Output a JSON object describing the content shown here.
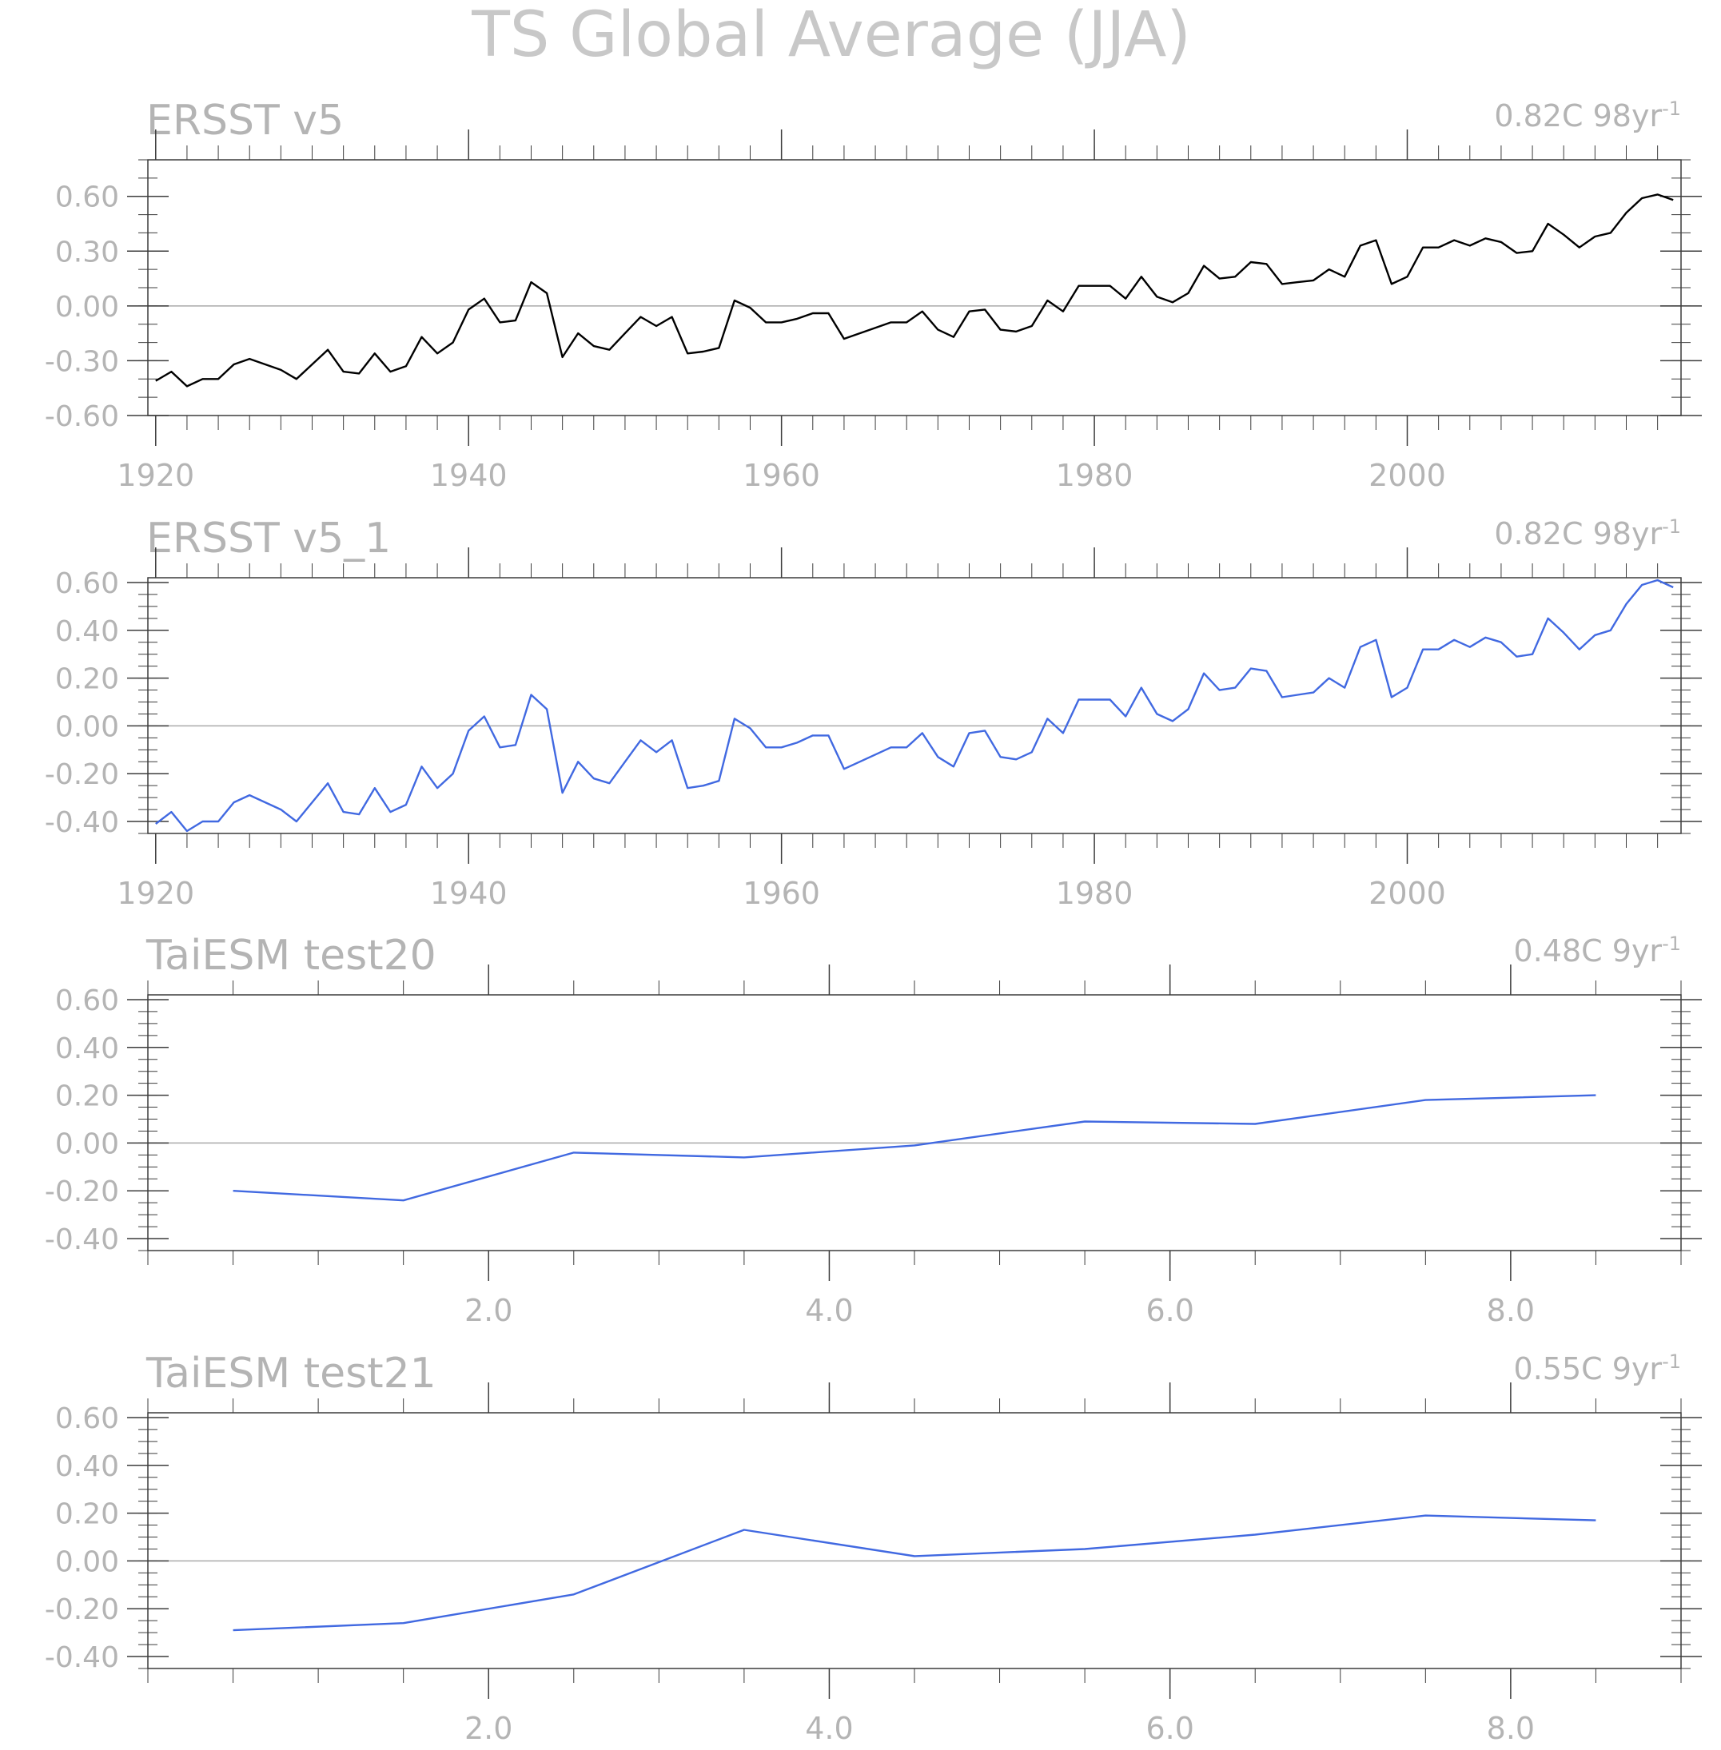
{
  "figure": {
    "title": "TS Global Average (JJA)"
  },
  "chart_data": [
    {
      "type": "line",
      "title": "ERSST v5",
      "trend_value": "0.82C 98yr",
      "trend_exp": "-1",
      "line_color": "#000000",
      "xlim": [
        1919.5,
        2017.5
      ],
      "ylim": [
        -0.6,
        0.8
      ],
      "yticks": [
        -0.6,
        -0.3,
        0.0,
        0.3,
        0.6
      ],
      "ytick_labels": [
        "-0.60",
        "-0.30",
        "0.00",
        "0.30",
        "0.60"
      ],
      "xticks": [
        1920,
        1940,
        1960,
        1980,
        2000
      ],
      "xtick_labels": [
        "1920",
        "1940",
        "1960",
        "1980",
        "2000"
      ],
      "x_minor_step": 2,
      "y_minor_step": 0.1,
      "zero_line": true,
      "x_start": 1920,
      "values": [
        -0.41,
        -0.36,
        -0.44,
        -0.4,
        -0.4,
        -0.32,
        -0.29,
        -0.32,
        -0.35,
        -0.4,
        -0.32,
        -0.24,
        -0.36,
        -0.37,
        -0.26,
        -0.36,
        -0.33,
        -0.17,
        -0.26,
        -0.2,
        -0.02,
        0.04,
        -0.09,
        -0.08,
        0.13,
        0.07,
        -0.28,
        -0.15,
        -0.22,
        -0.24,
        -0.15,
        -0.06,
        -0.11,
        -0.06,
        -0.26,
        -0.25,
        -0.23,
        0.03,
        -0.01,
        -0.09,
        -0.09,
        -0.07,
        -0.04,
        -0.04,
        -0.18,
        -0.15,
        -0.12,
        -0.09,
        -0.09,
        -0.03,
        -0.13,
        -0.17,
        -0.03,
        -0.02,
        -0.13,
        -0.14,
        -0.11,
        0.03,
        -0.03,
        0.11,
        0.11,
        0.11,
        0.04,
        0.16,
        0.05,
        0.02,
        0.07,
        0.22,
        0.15,
        0.16,
        0.24,
        0.23,
        0.12,
        0.13,
        0.14,
        0.2,
        0.16,
        0.33,
        0.36,
        0.12,
        0.16,
        0.32,
        0.32,
        0.36,
        0.33,
        0.37,
        0.35,
        0.29,
        0.3,
        0.45,
        0.39,
        0.32,
        0.38,
        0.4,
        0.51,
        0.59,
        0.61,
        0.58
      ]
    },
    {
      "type": "line",
      "title": "ERSST v5_1",
      "trend_value": "0.82C 98yr",
      "trend_exp": "-1",
      "line_color": "#4169e1",
      "xlim": [
        1919.5,
        2017.5
      ],
      "ylim": [
        -0.45,
        0.62
      ],
      "yticks": [
        -0.4,
        -0.2,
        0.0,
        0.2,
        0.4,
        0.6
      ],
      "ytick_labels": [
        "-0.40",
        "-0.20",
        "0.00",
        "0.20",
        "0.40",
        "0.60"
      ],
      "xticks": [
        1920,
        1940,
        1960,
        1980,
        2000
      ],
      "xtick_labels": [
        "1920",
        "1940",
        "1960",
        "1980",
        "2000"
      ],
      "x_minor_step": 2,
      "y_minor_step": 0.05,
      "zero_line": true,
      "x_start": 1920,
      "values": [
        -0.41,
        -0.36,
        -0.44,
        -0.4,
        -0.4,
        -0.32,
        -0.29,
        -0.32,
        -0.35,
        -0.4,
        -0.32,
        -0.24,
        -0.36,
        -0.37,
        -0.26,
        -0.36,
        -0.33,
        -0.17,
        -0.26,
        -0.2,
        -0.02,
        0.04,
        -0.09,
        -0.08,
        0.13,
        0.07,
        -0.28,
        -0.15,
        -0.22,
        -0.24,
        -0.15,
        -0.06,
        -0.11,
        -0.06,
        -0.26,
        -0.25,
        -0.23,
        0.03,
        -0.01,
        -0.09,
        -0.09,
        -0.07,
        -0.04,
        -0.04,
        -0.18,
        -0.15,
        -0.12,
        -0.09,
        -0.09,
        -0.03,
        -0.13,
        -0.17,
        -0.03,
        -0.02,
        -0.13,
        -0.14,
        -0.11,
        0.03,
        -0.03,
        0.11,
        0.11,
        0.11,
        0.04,
        0.16,
        0.05,
        0.02,
        0.07,
        0.22,
        0.15,
        0.16,
        0.24,
        0.23,
        0.12,
        0.13,
        0.14,
        0.2,
        0.16,
        0.33,
        0.36,
        0.12,
        0.16,
        0.32,
        0.32,
        0.36,
        0.33,
        0.37,
        0.35,
        0.29,
        0.3,
        0.45,
        0.39,
        0.32,
        0.38,
        0.4,
        0.51,
        0.59,
        0.61,
        0.58
      ]
    },
    {
      "type": "line",
      "title": "TaiESM test20",
      "trend_value": "0.48C 9yr",
      "trend_exp": "-1",
      "line_color": "#4169e1",
      "xlim": [
        0.0,
        9.0
      ],
      "ylim": [
        -0.45,
        0.62
      ],
      "yticks": [
        -0.4,
        -0.2,
        0.0,
        0.2,
        0.4,
        0.6
      ],
      "ytick_labels": [
        "-0.40",
        "-0.20",
        "0.00",
        "0.20",
        "0.40",
        "0.60"
      ],
      "xticks": [
        2,
        4,
        6,
        8
      ],
      "xtick_labels": [
        "2.0",
        "4.0",
        "6.0",
        "8.0"
      ],
      "x_minor_step": 0.5,
      "y_minor_step": 0.05,
      "zero_line": true,
      "x": [
        0.5,
        1.5,
        2.5,
        3.5,
        4.5,
        5.5,
        6.5,
        7.5,
        8.5
      ],
      "values": [
        -0.2,
        -0.24,
        -0.04,
        -0.06,
        -0.01,
        0.09,
        0.08,
        0.18,
        0.2
      ]
    },
    {
      "type": "line",
      "title": "TaiESM test21",
      "trend_value": "0.55C 9yr",
      "trend_exp": "-1",
      "line_color": "#4169e1",
      "xlim": [
        0.0,
        9.0
      ],
      "ylim": [
        -0.45,
        0.62
      ],
      "yticks": [
        -0.4,
        -0.2,
        0.0,
        0.2,
        0.4,
        0.6
      ],
      "ytick_labels": [
        "-0.40",
        "-0.20",
        "0.00",
        "0.20",
        "0.40",
        "0.60"
      ],
      "xticks": [
        2,
        4,
        6,
        8
      ],
      "xtick_labels": [
        "2.0",
        "4.0",
        "6.0",
        "8.0"
      ],
      "x_minor_step": 0.5,
      "y_minor_step": 0.05,
      "zero_line": true,
      "x": [
        0.5,
        1.5,
        2.5,
        3.5,
        4.5,
        5.5,
        6.5,
        7.5,
        8.5
      ],
      "values": [
        -0.29,
        -0.26,
        -0.14,
        0.13,
        0.02,
        0.05,
        0.11,
        0.19,
        0.17
      ]
    }
  ]
}
